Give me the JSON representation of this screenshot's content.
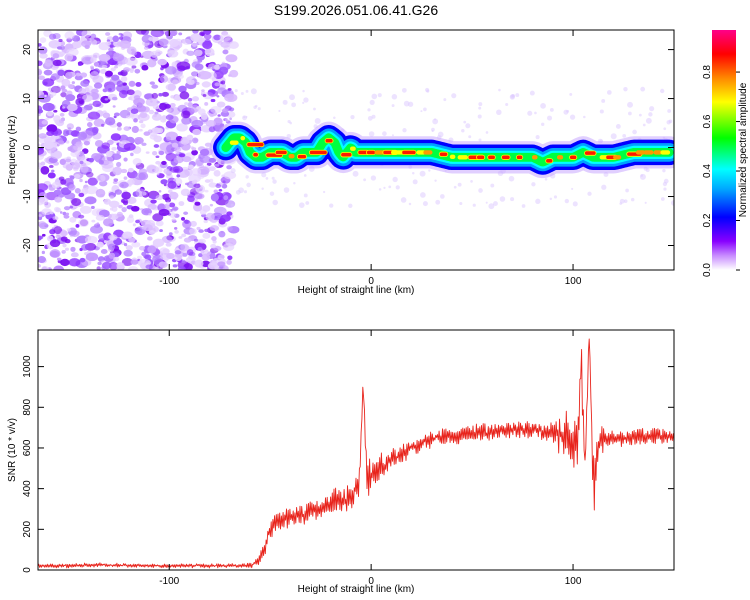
{
  "title": "S199.2026.051.06.41.G26",
  "colorbar": {
    "label": "Normalized spectral amplitude",
    "ticks": [
      "0.0",
      "0.2",
      "0.4",
      "0.6",
      "0.8"
    ],
    "tick_values": [
      0.0,
      0.2,
      0.4,
      0.6,
      0.8
    ],
    "range": [
      0,
      0.97
    ],
    "colors": [
      "#ffffff",
      "#8800ff",
      "#0000ff",
      "#00ffff",
      "#00ff00",
      "#ffff00",
      "#ff8800",
      "#ff0000",
      "#ff0088"
    ]
  },
  "chart_data": [
    {
      "type": "heatmap",
      "title": "S199.2026.051.06.41.G26",
      "xlabel": "Height of straight line (km)",
      "ylabel": "Frequency (Hz)",
      "xlim": [
        -165,
        150
      ],
      "ylim": [
        -25,
        24
      ],
      "xticks": [
        -100,
        0,
        100
      ],
      "yticks": [
        -20,
        -10,
        0,
        10,
        20
      ],
      "xtick_labels": [
        "-100",
        "0",
        "100"
      ],
      "ytick_labels": [
        "-20",
        "-10",
        "0",
        "10",
        "20"
      ],
      "noise_region_x": [
        -165,
        -70
      ],
      "signal_region_x": [
        -72,
        150
      ],
      "signal_track": {
        "x": [
          -72,
          -68,
          -65,
          -62,
          -60,
          -57,
          -54,
          -50,
          -47,
          -44,
          -40,
          -37,
          -34,
          -30,
          -27,
          -24,
          -21,
          -18,
          -16,
          -14,
          -12,
          -10,
          -8,
          -6,
          -4,
          -2,
          0,
          10,
          20,
          30,
          40,
          50,
          60,
          70,
          80,
          85,
          90,
          95,
          100,
          105,
          110,
          120,
          130,
          140,
          148
        ],
        "y": [
          0,
          2,
          2,
          1,
          -1,
          -2,
          -2,
          -1,
          -1,
          -1,
          -2,
          -2,
          -1,
          -1,
          -1,
          1,
          2,
          1,
          -1,
          -2,
          -1,
          0,
          -1,
          -1,
          -1,
          -1,
          -1,
          -1,
          -1,
          -1,
          -2,
          -2,
          -2,
          -2,
          -2,
          -3,
          -2,
          -2,
          -2,
          -1,
          -2,
          -2,
          -1,
          -1,
          -1
        ]
      }
    },
    {
      "type": "line",
      "xlabel": "Height of straight line (km)",
      "ylabel": "SNR (10 * v/v)",
      "xlim": [
        -165,
        150
      ],
      "ylim": [
        0,
        1180
      ],
      "xticks": [
        -100,
        0,
        100
      ],
      "yticks": [
        0,
        200,
        400,
        600,
        800,
        1000
      ],
      "xtick_labels": [
        "-100",
        "0",
        "100"
      ],
      "ytick_labels": [
        "0",
        "200",
        "400",
        "600",
        "800",
        "1000"
      ],
      "series": [
        {
          "name": "SNR",
          "color": "#e8241c",
          "x": [
            -165,
            -150,
            -140,
            -130,
            -120,
            -110,
            -100,
            -90,
            -80,
            -70,
            -62,
            -58,
            -55,
            -52,
            -50,
            -47,
            -44,
            -40,
            -35,
            -30,
            -25,
            -20,
            -15,
            -10,
            -6,
            -4,
            -2,
            0,
            4,
            8,
            12,
            16,
            20,
            25,
            30,
            40,
            50,
            60,
            70,
            80,
            90,
            95,
            100,
            102,
            104,
            106,
            108,
            110,
            112,
            115,
            120,
            130,
            140,
            150
          ],
          "values": [
            20,
            22,
            25,
            24,
            22,
            21,
            20,
            22,
            21,
            22,
            23,
            30,
            60,
            120,
            200,
            230,
            240,
            260,
            270,
            290,
            300,
            330,
            340,
            360,
            400,
            910,
            440,
            460,
            490,
            530,
            550,
            580,
            600,
            620,
            650,
            660,
            670,
            680,
            690,
            690,
            680,
            660,
            650,
            600,
            1060,
            520,
            1180,
            400,
            620,
            650,
            640,
            650,
            660,
            660
          ],
          "noise_amplitude": [
            14,
            14,
            14,
            14,
            14,
            14,
            14,
            14,
            14,
            14,
            14,
            40,
            70,
            80,
            80,
            80,
            80,
            70,
            70,
            70,
            80,
            80,
            90,
            100,
            120,
            40,
            130,
            120,
            100,
            80,
            80,
            70,
            60,
            60,
            60,
            60,
            60,
            60,
            60,
            60,
            80,
            150,
            200,
            250,
            150,
            250,
            150,
            250,
            180,
            90,
            60,
            60,
            60,
            60
          ]
        }
      ]
    }
  ]
}
